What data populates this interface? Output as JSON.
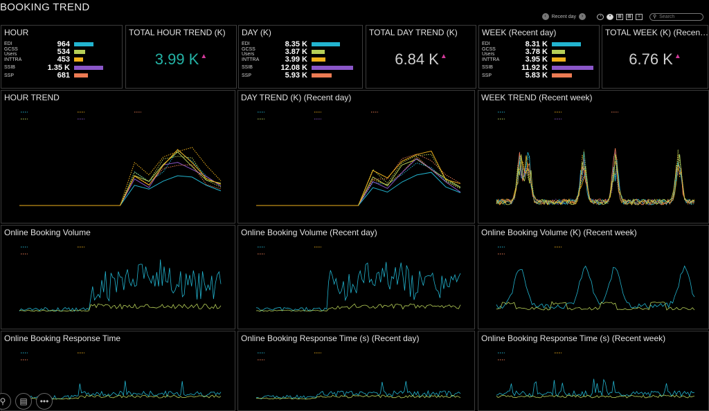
{
  "title": "BOOKING TREND",
  "toolbar": {
    "period_label": "Recent day",
    "search_placeholder": "Search",
    "prev_icon": "chevron-left-icon",
    "next_icon": "chevron-right-icon"
  },
  "colors": {
    "EDI": "#22b4cf",
    "GCSS Users": "#b6cf57",
    "INTTRA": "#f0b21c",
    "SSIB": "#8a56c8",
    "SSP": "#ec7b53",
    "kpi_hour": "#24b3a6",
    "kpi_other": "#cfcfcf",
    "trend_up_arrow": "#d23a9a"
  },
  "hour": {
    "title": "HOUR",
    "rows": [
      {
        "label": "EDI",
        "value": "964",
        "fraction": 0.47
      },
      {
        "label": "GCSS Users",
        "value": "534",
        "fraction": 0.27
      },
      {
        "label": "INTTRA",
        "value": "453",
        "fraction": 0.22
      },
      {
        "label": "SSIB",
        "value": "1.35 K",
        "fraction": 0.7
      },
      {
        "label": "SSP",
        "value": "681",
        "fraction": 0.34
      }
    ]
  },
  "total_hour": {
    "title": "TOTAL HOUR TREND (K)",
    "value": "3.99 K",
    "arrow": "▲"
  },
  "day": {
    "title": "DAY (K)",
    "rows": [
      {
        "label": "EDI",
        "value": "8.35 K",
        "fraction": 0.69
      },
      {
        "label": "GCSS Users",
        "value": "3.87 K",
        "fraction": 0.32
      },
      {
        "label": "INTTRA",
        "value": "3.99 K",
        "fraction": 0.33
      },
      {
        "label": "SSIB",
        "value": "12.08 K",
        "fraction": 1.0
      },
      {
        "label": "SSP",
        "value": "5.93 K",
        "fraction": 0.49
      }
    ]
  },
  "total_day": {
    "title": "TOTAL DAY TREND (K)",
    "value": "6.84 K",
    "arrow": "▲"
  },
  "week": {
    "title": "WEEK (Recent day)",
    "rows": [
      {
        "label": "EDI",
        "value": "8.31 K",
        "fraction": 0.7
      },
      {
        "label": "GCSS Users",
        "value": "3.78 K",
        "fraction": 0.32
      },
      {
        "label": "INTTRA",
        "value": "3.95 K",
        "fraction": 0.33
      },
      {
        "label": "SSIB",
        "value": "11.92 K",
        "fraction": 1.0
      },
      {
        "label": "SSP",
        "value": "5.83 K",
        "fraction": 0.49
      }
    ]
  },
  "total_week": {
    "title": "TOTAL WEEK (K) (Recen…",
    "value": "6.76 K",
    "arrow": "▲"
  },
  "panels": {
    "hour_trend": "HOUR TREND",
    "day_trend": "DAY TREND (K) (Recent day)",
    "week_trend": "WEEK TREND (Recent week)",
    "vol_hour": "Online Booking Volume",
    "vol_day": "Online Booking Volume (Recent day)",
    "vol_week": "Online Booking Volume (K) (Recent week)",
    "resp_hour": "Online Booking Response Time",
    "resp_day": "Online Booking Response Time (s) (Recent day)",
    "resp_week": "Online Booking Response Time (s) (Recent week)"
  },
  "bottom_icons": [
    "search-icon",
    "calendar-icon",
    "more-icon"
  ]
}
